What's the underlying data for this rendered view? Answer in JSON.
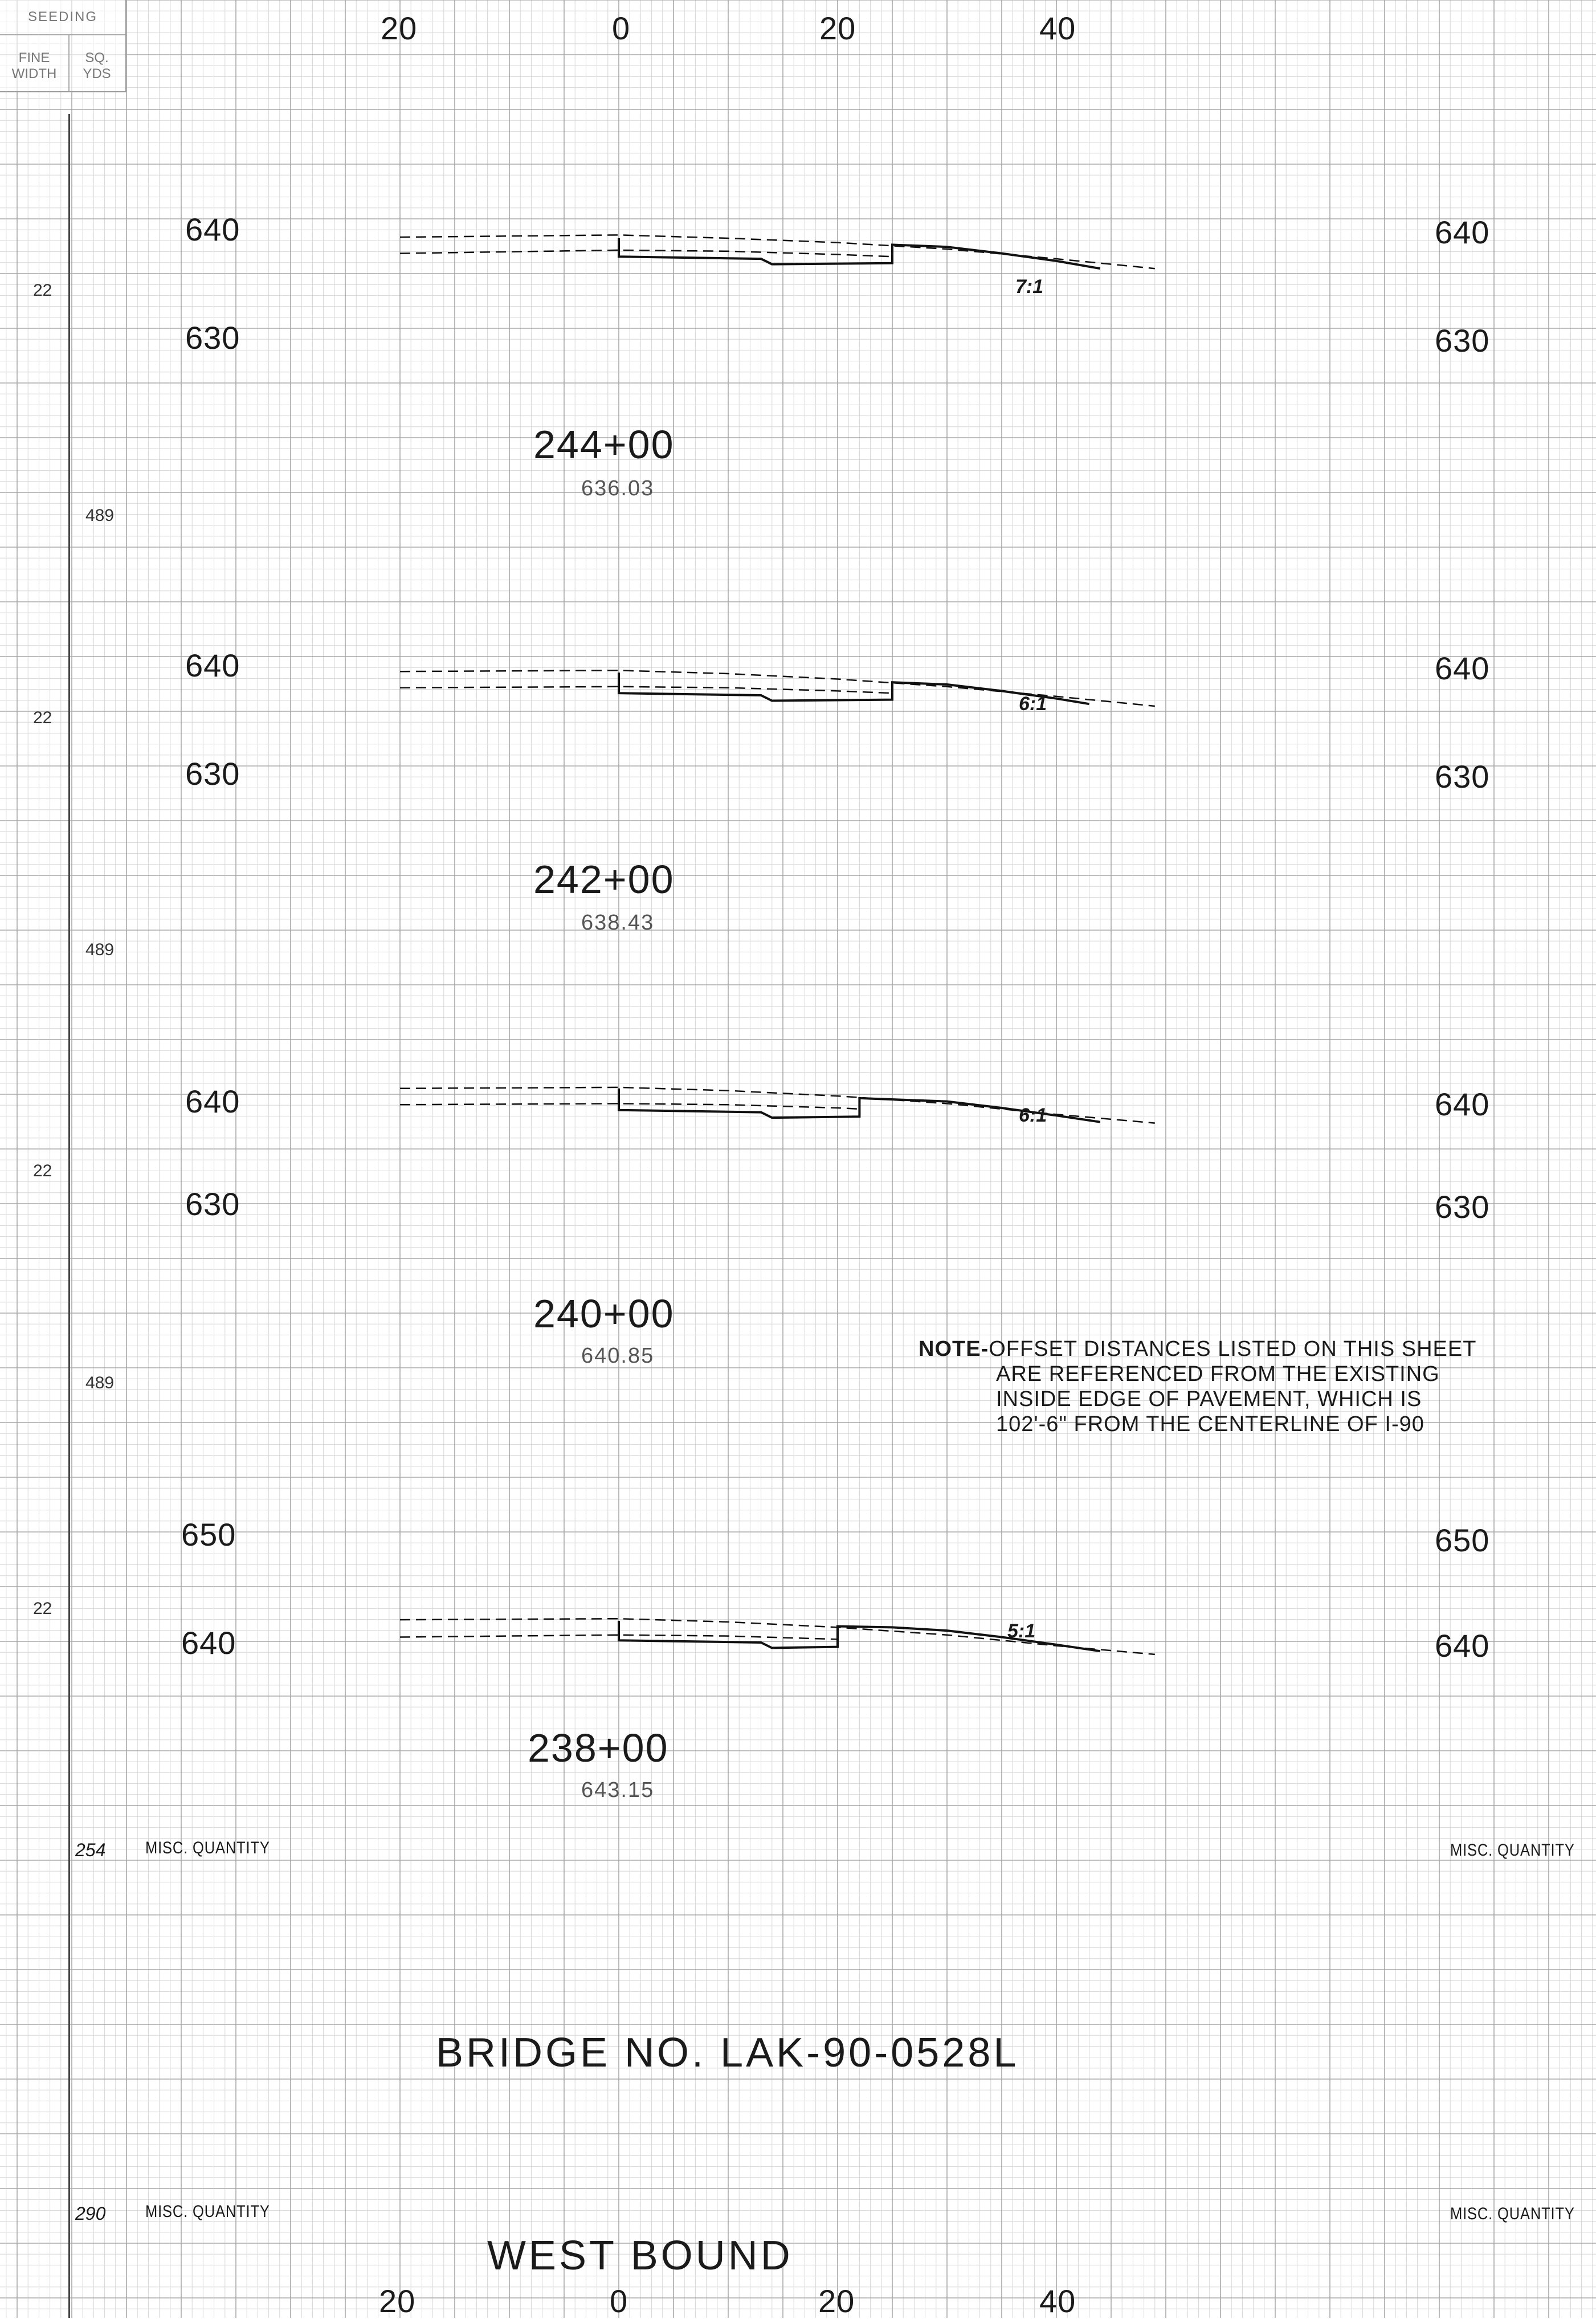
{
  "axis": {
    "offsets_top": [
      "20",
      "0",
      "20",
      "40"
    ],
    "offsets_bottom": [
      "20",
      "0",
      "20",
      "40"
    ]
  },
  "header_box": {
    "title": "SEEDING",
    "col1": "FINE WIDTH",
    "col2": "SQ. YDS"
  },
  "sections": [
    {
      "station": "244+00",
      "grade_elevation": "636.03",
      "elev_upper": "640",
      "elev_lower": "630",
      "slope": "7:1",
      "side_a": "22",
      "side_b": "489",
      "profile": {
        "existing_upper": [
          [
            -20,
            636.1
          ],
          [
            0,
            636.3
          ],
          [
            10,
            636.0
          ],
          [
            20,
            635.6
          ],
          [
            30,
            635.0
          ],
          [
            40,
            634.1
          ],
          [
            49,
            633.2
          ]
        ],
        "existing_lower": [
          [
            -20,
            634.6
          ],
          [
            0,
            634.9
          ],
          [
            10,
            634.8
          ],
          [
            20,
            634.5
          ],
          [
            25,
            634.3
          ]
        ],
        "proposed": [
          [
            0,
            636.0
          ],
          [
            0,
            634.3
          ],
          [
            13,
            634.1
          ],
          [
            14,
            633.6
          ],
          [
            25,
            633.7
          ],
          [
            25,
            635.4
          ],
          [
            30,
            635.2
          ],
          [
            35,
            634.6
          ],
          [
            40,
            633.9
          ],
          [
            44,
            633.2
          ]
        ]
      }
    },
    {
      "station": "242+00",
      "grade_elevation": "638.43",
      "elev_upper": "640",
      "elev_lower": "630",
      "slope": "6:1",
      "side_a": "22",
      "side_b": "489",
      "profile": {
        "existing_upper": [
          [
            -20,
            636.2
          ],
          [
            0,
            636.3
          ],
          [
            10,
            636.0
          ],
          [
            20,
            635.5
          ],
          [
            30,
            634.8
          ],
          [
            40,
            633.9
          ],
          [
            49,
            633.0
          ]
        ],
        "existing_lower": [
          [
            -20,
            634.7
          ],
          [
            0,
            634.8
          ],
          [
            10,
            634.7
          ],
          [
            20,
            634.4
          ],
          [
            25,
            634.2
          ]
        ],
        "proposed": [
          [
            0,
            636.1
          ],
          [
            0,
            634.2
          ],
          [
            13,
            634.0
          ],
          [
            14,
            633.5
          ],
          [
            25,
            633.6
          ],
          [
            25,
            635.2
          ],
          [
            30,
            635.0
          ],
          [
            35,
            634.4
          ],
          [
            40,
            633.7
          ],
          [
            43,
            633.2
          ]
        ]
      }
    },
    {
      "station": "240+00",
      "grade_elevation": "640.85",
      "elev_upper": "640",
      "elev_lower": "630",
      "slope": "6:1",
      "side_a": "22",
      "side_b": "489",
      "profile": {
        "existing_upper": [
          [
            -20,
            637.8
          ],
          [
            0,
            637.9
          ],
          [
            10,
            637.6
          ],
          [
            20,
            637.1
          ],
          [
            30,
            636.4
          ],
          [
            40,
            635.4
          ],
          [
            49,
            634.6
          ]
        ],
        "existing_lower": [
          [
            -20,
            636.3
          ],
          [
            0,
            636.4
          ],
          [
            10,
            636.3
          ],
          [
            20,
            636.0
          ],
          [
            22,
            635.9
          ]
        ],
        "proposed": [
          [
            0,
            637.8
          ],
          [
            0,
            635.8
          ],
          [
            13,
            635.6
          ],
          [
            14,
            635.1
          ],
          [
            22,
            635.2
          ],
          [
            22,
            636.9
          ],
          [
            30,
            636.6
          ],
          [
            35,
            636.0
          ],
          [
            40,
            635.3
          ],
          [
            44,
            634.7
          ]
        ]
      }
    },
    {
      "station": "238+00",
      "grade_elevation": "643.15",
      "elev_upper": "650",
      "elev_lower": "640",
      "slope": "5:1",
      "side_a": "22",
      "side_b": "",
      "profile": {
        "existing_upper": [
          [
            -20,
            642.1
          ],
          [
            0,
            642.2
          ],
          [
            10,
            641.9
          ],
          [
            20,
            641.4
          ],
          [
            30,
            640.7
          ],
          [
            40,
            639.7
          ],
          [
            49,
            638.9
          ]
        ],
        "existing_lower": [
          [
            -20,
            640.5
          ],
          [
            0,
            640.7
          ],
          [
            10,
            640.6
          ],
          [
            20,
            640.3
          ],
          [
            20,
            640.2
          ]
        ],
        "proposed": [
          [
            0,
            642.0
          ],
          [
            0,
            640.2
          ],
          [
            13,
            640.0
          ],
          [
            14,
            639.5
          ],
          [
            20,
            639.6
          ],
          [
            20,
            641.5
          ],
          [
            25,
            641.4
          ],
          [
            30,
            641.1
          ],
          [
            35,
            640.5
          ],
          [
            40,
            639.8
          ],
          [
            44,
            639.2
          ]
        ]
      }
    }
  ],
  "note": {
    "label": "NOTE-",
    "lines": [
      "OFFSET DISTANCES LISTED ON THIS SHEET",
      "ARE REFERENCED FROM THE EXISTING",
      "INSIDE EDGE OF PAVEMENT, WHICH IS",
      "102'-6\"  FROM THE CENTERLINE OF I-90"
    ]
  },
  "misc_rows": [
    {
      "number": "254",
      "left_label": "MISC. QUANTITY",
      "right_label": "MISC. QUANTITY"
    },
    {
      "number": "290",
      "left_label": "MISC. QUANTITY",
      "right_label": "MISC. QUANTITY"
    }
  ],
  "bridge_title": "BRIDGE NO. LAK-90-0528L",
  "direction_title": "WEST BOUND",
  "colors": {
    "grid_minor": "#d6d6d6",
    "grid_major": "#a8a8a8",
    "ink": "#111111"
  }
}
